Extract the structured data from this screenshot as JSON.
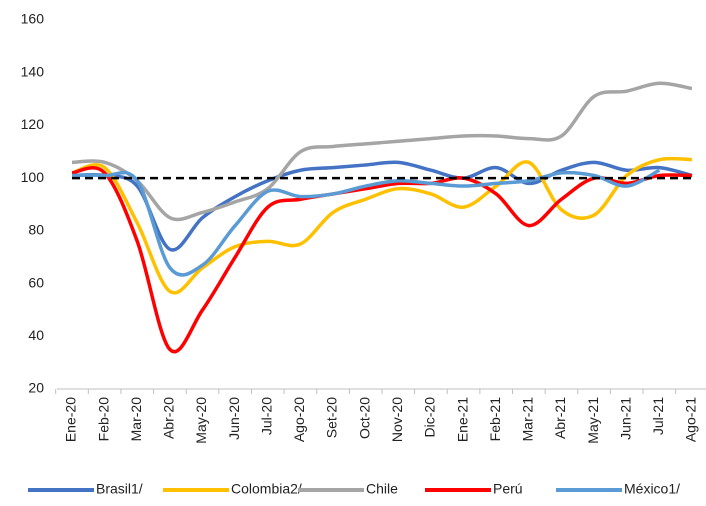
{
  "chart_data": {
    "type": "line",
    "categories": [
      "Ene-20",
      "Feb-20",
      "Mar-20",
      "Abr-20",
      "May-20",
      "Jun-20",
      "Jul-20",
      "Ago-20",
      "Set-20",
      "Oct-20",
      "Nov-20",
      "Dic-20",
      "Ene-21",
      "Feb-21",
      "Mar-21",
      "Abr-21",
      "May-21",
      "Jun-21",
      "Jul-21",
      "Ago-21"
    ],
    "series": [
      {
        "name": "Brasil1/",
        "color": "#4472c4",
        "values": [
          101,
          101,
          97,
          73,
          85,
          93,
          99,
          103,
          104,
          105,
          106,
          103,
          100,
          104,
          98,
          103,
          106,
          103,
          104,
          101
        ]
      },
      {
        "name": "Colombia2/",
        "color": "#ffc000",
        "values": [
          102,
          104,
          83,
          57,
          66,
          74,
          76,
          75,
          87,
          92,
          96,
          94,
          89,
          97,
          106,
          88,
          86,
          101,
          107,
          107
        ]
      },
      {
        "name": "Chile",
        "color": "#a5a5a5",
        "values": [
          106,
          106,
          99,
          85,
          87,
          91,
          96,
          110,
          112,
          113,
          114,
          115,
          116,
          116,
          115,
          116,
          131,
          133,
          136,
          134
        ]
      },
      {
        "name": "Perú",
        "color": "#ff0000",
        "values": [
          102,
          102,
          76,
          35,
          50,
          70,
          89,
          92,
          94,
          96,
          98,
          98,
          100,
          94,
          82,
          92,
          100,
          98,
          101,
          101
        ]
      },
      {
        "name": "México1/",
        "color": "#5b9bd5",
        "values": [
          101,
          101,
          99,
          66,
          67,
          82,
          95,
          93,
          94,
          97,
          99,
          98,
          97,
          98,
          99,
          102,
          101,
          97,
          103,
          null
        ]
      }
    ],
    "reference_line": 100,
    "ylim": [
      20,
      160
    ],
    "yticks": [
      20,
      40,
      60,
      80,
      100,
      120,
      140,
      160
    ]
  }
}
